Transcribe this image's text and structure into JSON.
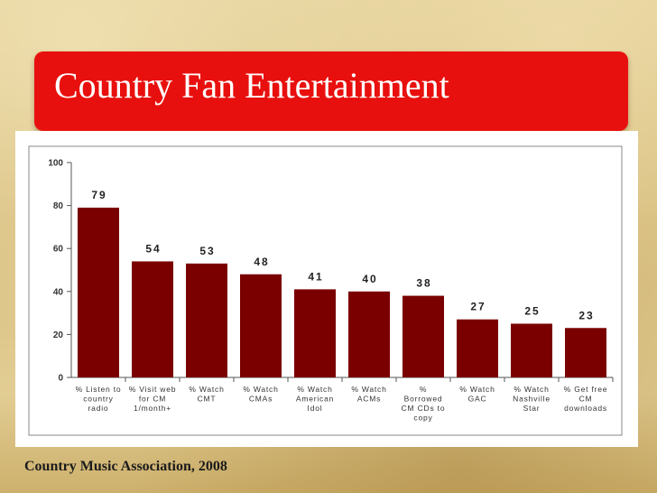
{
  "slide": {
    "title": "Country Fan Entertainment",
    "source": "Country Music Association, 2008"
  },
  "colors": {
    "title_bar": "#e8100e",
    "bar_fill": "#7a0000",
    "background": "#d8bf7f"
  },
  "chart_data": {
    "type": "bar",
    "title": "",
    "xlabel": "",
    "ylabel": "",
    "ylim": [
      0,
      100
    ],
    "yticks": [
      0,
      20,
      40,
      60,
      80,
      100
    ],
    "grid": false,
    "categories": [
      [
        "% Listen to",
        "country",
        "radio"
      ],
      [
        "% Visit web",
        "for CM",
        "1/month+"
      ],
      [
        "% Watch",
        "CMT"
      ],
      [
        "% Watch",
        "CMAs"
      ],
      [
        "% Watch",
        "American",
        "Idol"
      ],
      [
        "% Watch",
        "ACMs"
      ],
      [
        "%",
        "Borrowed",
        "CM CDs to",
        "copy"
      ],
      [
        "% Watch",
        "GAC"
      ],
      [
        "% Watch",
        "Nashville",
        "Star"
      ],
      [
        "% Get free",
        "CM",
        "downloads"
      ]
    ],
    "values": [
      79,
      54,
      53,
      48,
      41,
      40,
      38,
      27,
      25,
      23
    ]
  }
}
